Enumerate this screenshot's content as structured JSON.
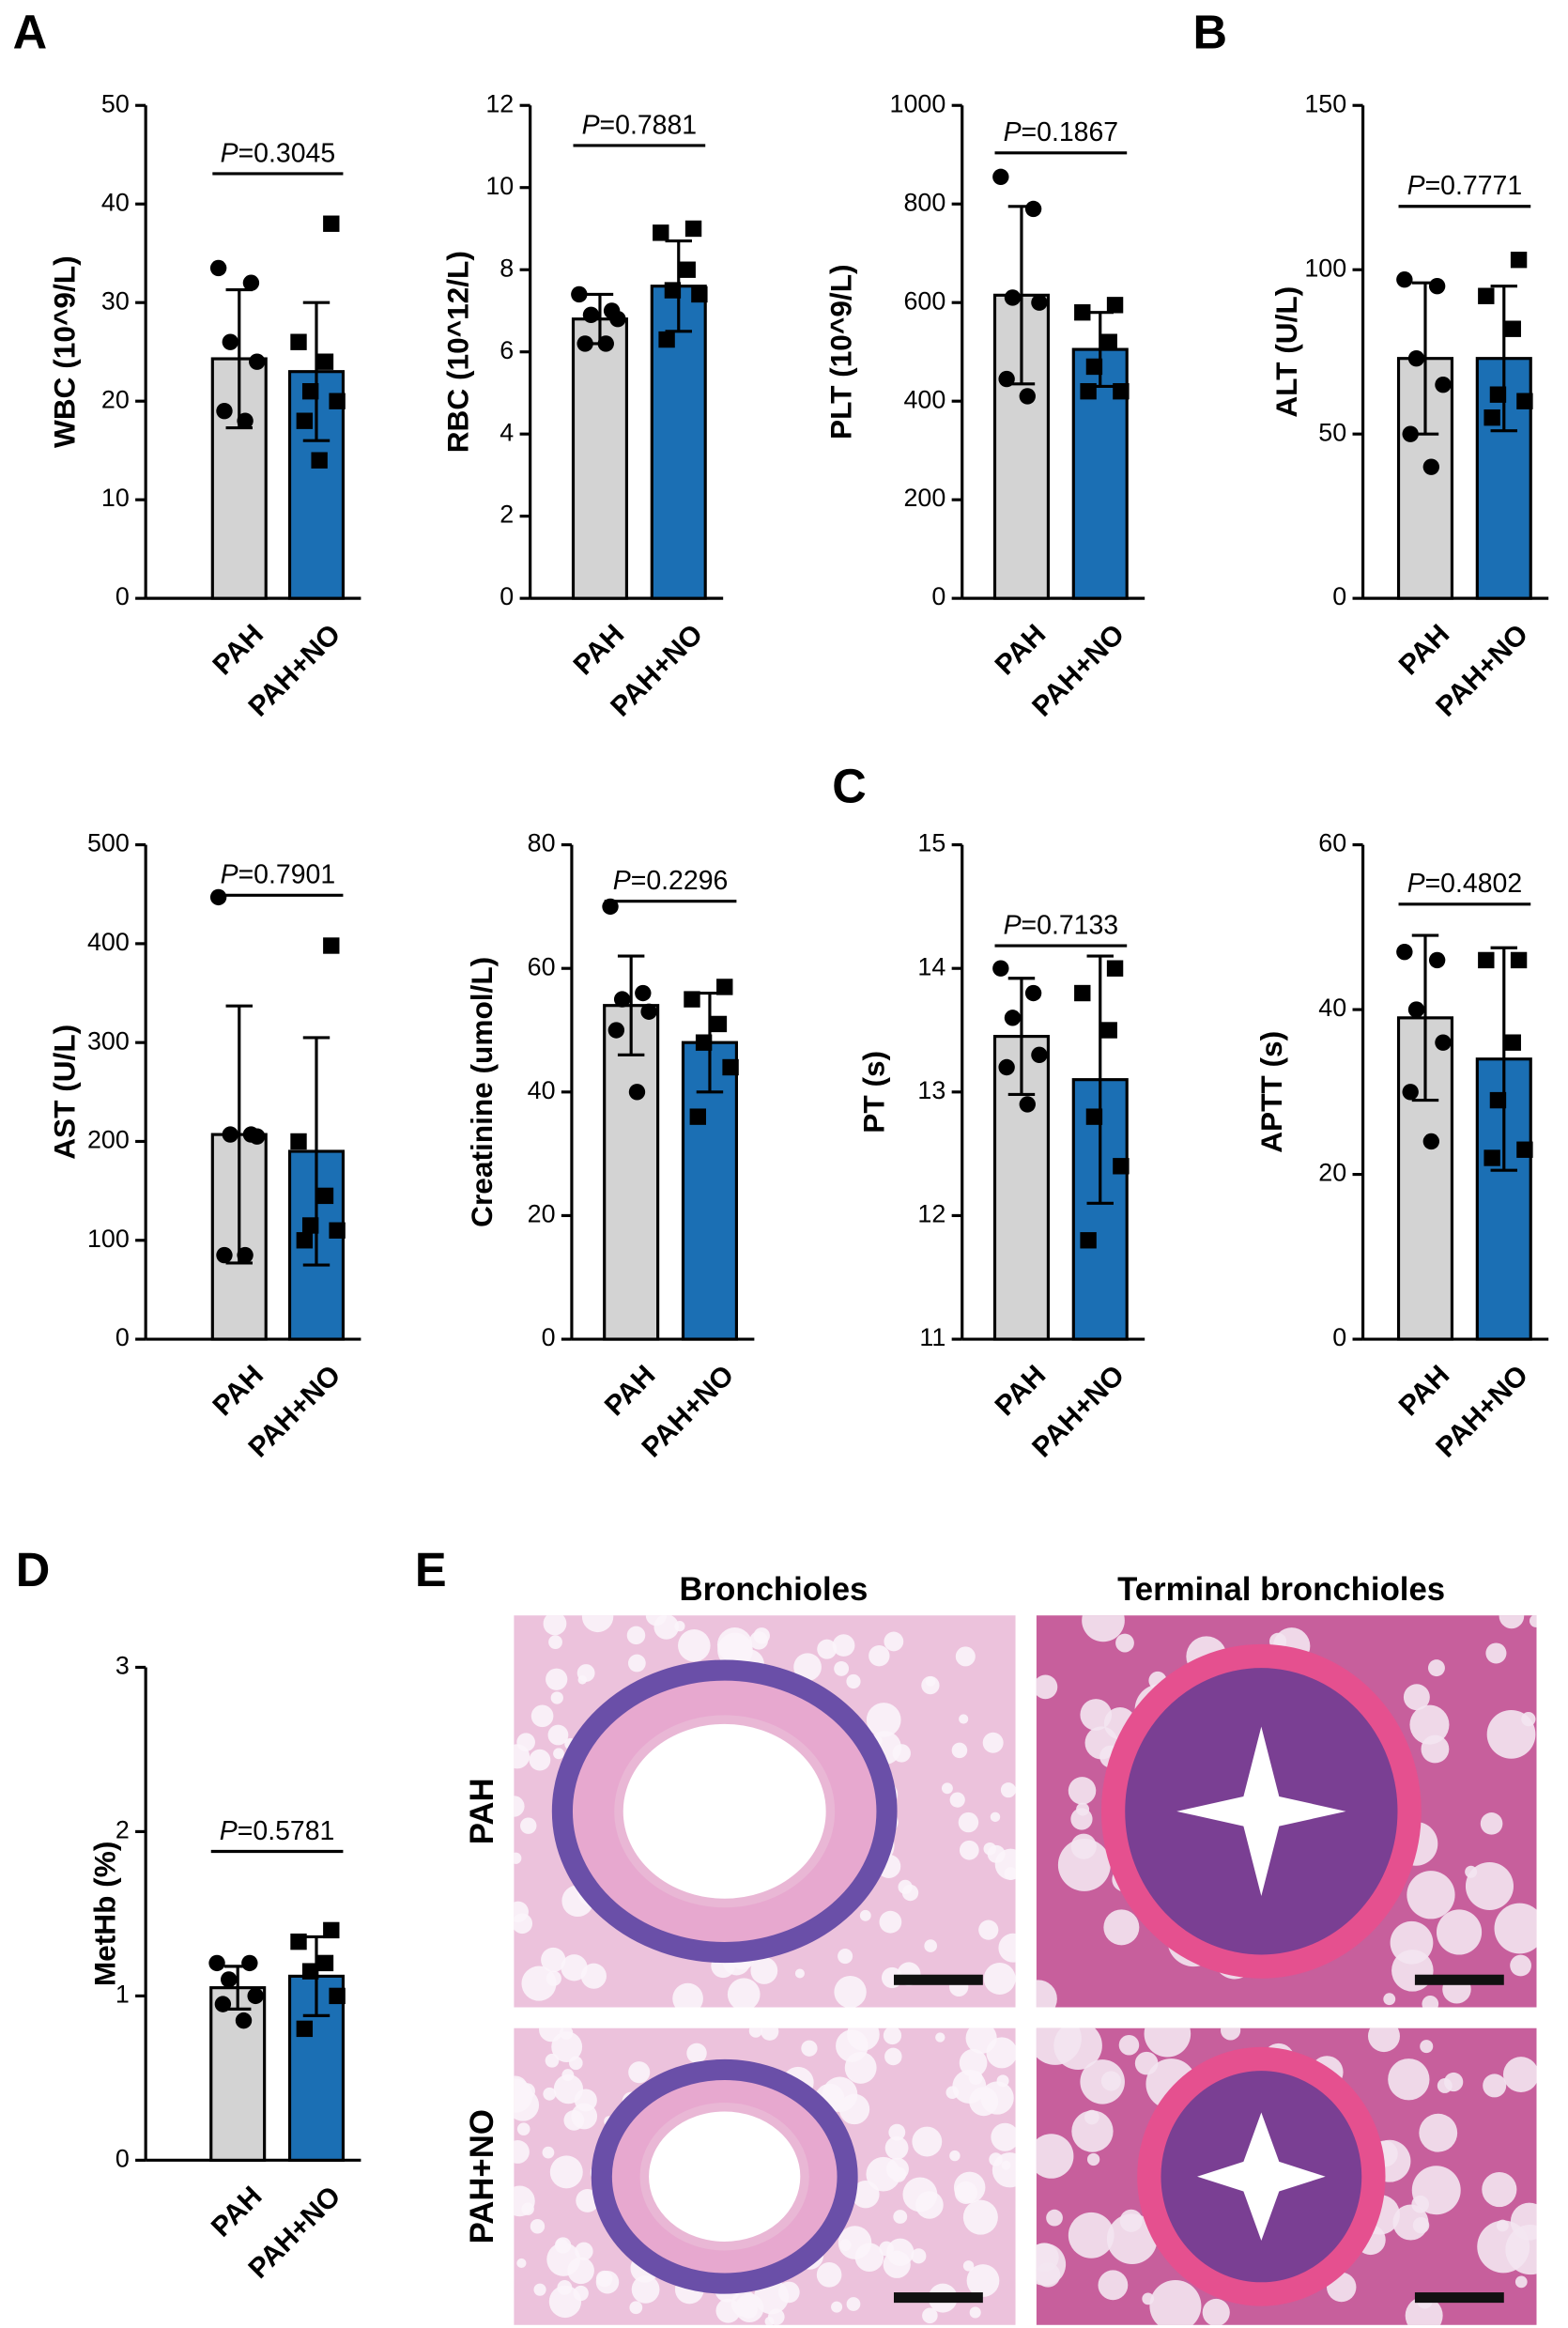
{
  "panel_labels": [
    "A",
    "B",
    "C",
    "D",
    "E"
  ],
  "histology": {
    "columns": [
      "Bronchioles",
      "Terminal bronchioles"
    ],
    "rows": [
      "PAH",
      "PAH+NO"
    ]
  },
  "chart_data": [
    {
      "type": "bar",
      "ylabel": "WBC (10^9/L)",
      "categories": [
        "PAH",
        "PAH+NO"
      ],
      "colors": [
        "#d3d3d3",
        "#1b6fb4"
      ],
      "values": [
        24.3,
        23
      ],
      "errors": [
        7,
        7
      ],
      "points": [
        [
          33.5,
          32,
          26,
          24,
          19,
          18
        ],
        [
          38,
          26,
          24,
          21,
          20,
          18,
          14
        ]
      ],
      "ylim": [
        0,
        50
      ],
      "yticks": [
        0,
        10,
        20,
        30,
        40,
        50
      ],
      "p_label": "P",
      "p_value": "=0.3045"
    },
    {
      "type": "bar",
      "ylabel": "RBC (10^12/L)",
      "categories": [
        "PAH",
        "PAH+NO"
      ],
      "colors": [
        "#d3d3d3",
        "#1b6fb4"
      ],
      "values": [
        6.8,
        7.6
      ],
      "errors": [
        0.6,
        1.1
      ],
      "points": [
        [
          7.4,
          7.0,
          6.9,
          6.8,
          6.2,
          6.2
        ],
        [
          9.0,
          8.9,
          8.0,
          7.5,
          7.4,
          6.3
        ]
      ],
      "ylim": [
        0,
        12
      ],
      "yticks": [
        0,
        2,
        4,
        6,
        8,
        10,
        12
      ],
      "p_label": "P",
      "p_value": "=0.7881"
    },
    {
      "type": "bar",
      "ylabel": "PLT (10^9/L)",
      "categories": [
        "PAH",
        "PAH+NO"
      ],
      "colors": [
        "#d3d3d3",
        "#1b6fb4"
      ],
      "values": [
        615,
        505
      ],
      "errors": [
        180,
        75
      ],
      "points": [
        [
          855,
          790,
          610,
          600,
          445,
          410
        ],
        [
          595,
          580,
          520,
          470,
          420,
          420
        ]
      ],
      "ylim": [
        0,
        1000
      ],
      "yticks": [
        0,
        200,
        400,
        600,
        800,
        1000
      ],
      "p_label": "P",
      "p_value": "=0.1867"
    },
    {
      "type": "bar",
      "ylabel": "ALT (U/L)",
      "categories": [
        "PAH",
        "PAH+NO"
      ],
      "colors": [
        "#d3d3d3",
        "#1b6fb4"
      ],
      "values": [
        73,
        73
      ],
      "errors": [
        23,
        22
      ],
      "points": [
        [
          97,
          95,
          73,
          65,
          50,
          40
        ],
        [
          103,
          92,
          82,
          62,
          60,
          55
        ]
      ],
      "ylim": [
        0,
        150
      ],
      "yticks": [
        0,
        50,
        100,
        150
      ],
      "p_label": "P",
      "p_value": "=0.7771"
    },
    {
      "type": "bar",
      "ylabel": "AST (U/L)",
      "categories": [
        "PAH",
        "PAH+NO"
      ],
      "colors": [
        "#d3d3d3",
        "#1b6fb4"
      ],
      "values": [
        207,
        190
      ],
      "errors": [
        130,
        115
      ],
      "points": [
        [
          447,
          207,
          207,
          205,
          85,
          85
        ],
        [
          398,
          200,
          145,
          115,
          110,
          100
        ]
      ],
      "ylim": [
        0,
        500
      ],
      "yticks": [
        0,
        100,
        200,
        300,
        400,
        500
      ],
      "p_label": "P",
      "p_value": "=0.7901"
    },
    {
      "type": "bar",
      "ylabel": "Creatinine (umol/L)",
      "categories": [
        "PAH",
        "PAH+NO"
      ],
      "colors": [
        "#d3d3d3",
        "#1b6fb4"
      ],
      "values": [
        54,
        48
      ],
      "errors": [
        8,
        8
      ],
      "points": [
        [
          70,
          56,
          55,
          53,
          50,
          40
        ],
        [
          57,
          55,
          51,
          48,
          44,
          36
        ]
      ],
      "ylim": [
        0,
        80
      ],
      "yticks": [
        0,
        20,
        40,
        60,
        80
      ],
      "p_label": "P",
      "p_value": "=0.2296"
    },
    {
      "type": "bar",
      "ylabel": "PT (s)",
      "categories": [
        "PAH",
        "PAH+NO"
      ],
      "colors": [
        "#d3d3d3",
        "#1b6fb4"
      ],
      "values": [
        13.45,
        13.1
      ],
      "errors": [
        0.47,
        1.0
      ],
      "points": [
        [
          14.0,
          13.8,
          13.6,
          13.3,
          13.2,
          12.9
        ],
        [
          14.0,
          13.8,
          13.5,
          12.8,
          12.4,
          11.8
        ]
      ],
      "ylim": [
        11,
        15
      ],
      "yticks": [
        11,
        12,
        13,
        14,
        15
      ],
      "p_label": "P",
      "p_value": "=0.7133"
    },
    {
      "type": "bar",
      "ylabel": "APTT (s)",
      "categories": [
        "PAH",
        "PAH+NO"
      ],
      "colors": [
        "#d3d3d3",
        "#1b6fb4"
      ],
      "values": [
        39,
        34
      ],
      "errors": [
        10,
        13.5
      ],
      "points": [
        [
          47,
          46,
          40,
          36,
          30,
          24
        ],
        [
          46,
          46,
          36,
          29,
          23,
          22
        ]
      ],
      "ylim": [
        0,
        60
      ],
      "yticks": [
        0,
        20,
        40,
        60
      ],
      "p_label": "P",
      "p_value": "=0.4802"
    },
    {
      "type": "bar",
      "ylabel": "MetHb (%)",
      "categories": [
        "PAH",
        "PAH+NO"
      ],
      "colors": [
        "#d3d3d3",
        "#1b6fb4"
      ],
      "values": [
        1.05,
        1.12
      ],
      "errors": [
        0.13,
        0.24
      ],
      "points": [
        [
          1.2,
          1.2,
          1.1,
          1.0,
          0.95,
          0.85
        ],
        [
          1.4,
          1.33,
          1.2,
          1.15,
          1.0,
          0.8
        ]
      ],
      "ylim": [
        0,
        3
      ],
      "yticks": [
        0,
        1,
        2,
        3
      ],
      "p_label": "P",
      "p_value": "=0.5781"
    }
  ]
}
